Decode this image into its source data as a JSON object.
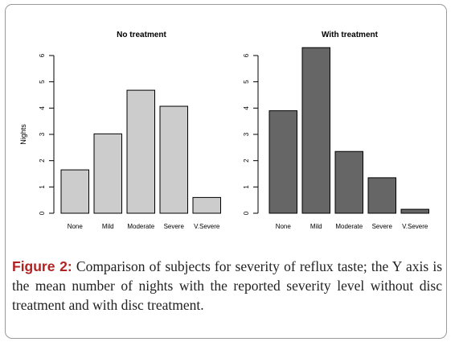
{
  "chart_data": [
    {
      "type": "bar",
      "title": "No treatment",
      "ylabel": "Nights",
      "xlabel": "",
      "categories": [
        "None",
        "Mild",
        "Moderate",
        "Severe",
        "V.Severe"
      ],
      "values": [
        1.65,
        3.02,
        4.68,
        4.07,
        0.6
      ],
      "ylim": [
        0,
        6
      ],
      "yticks": [
        "0",
        "1",
        "2",
        "3",
        "4",
        "5",
        "6"
      ],
      "bar_color": "#cccccc",
      "grid": false,
      "legend": "none"
    },
    {
      "type": "bar",
      "title": "With treatment",
      "ylabel": "",
      "xlabel": "",
      "categories": [
        "None",
        "Mild",
        "Moderate",
        "Severe",
        "V.Severe"
      ],
      "values": [
        3.9,
        6.3,
        2.35,
        1.35,
        0.15
      ],
      "ylim": [
        0,
        6
      ],
      "yticks": [
        "0",
        "1",
        "2",
        "3",
        "4",
        "5",
        "6"
      ],
      "bar_color": "#666666",
      "grid": false,
      "legend": "none"
    }
  ],
  "caption": {
    "label": "Figure 2:",
    "text": "Comparison of subjects for severity of reflux taste; the Y axis is the mean number of nights with the reported severity level without disc treatment and with disc treatment."
  },
  "colors": {
    "caption_label": "#b22222",
    "frame_border": "#9a9a9a"
  }
}
